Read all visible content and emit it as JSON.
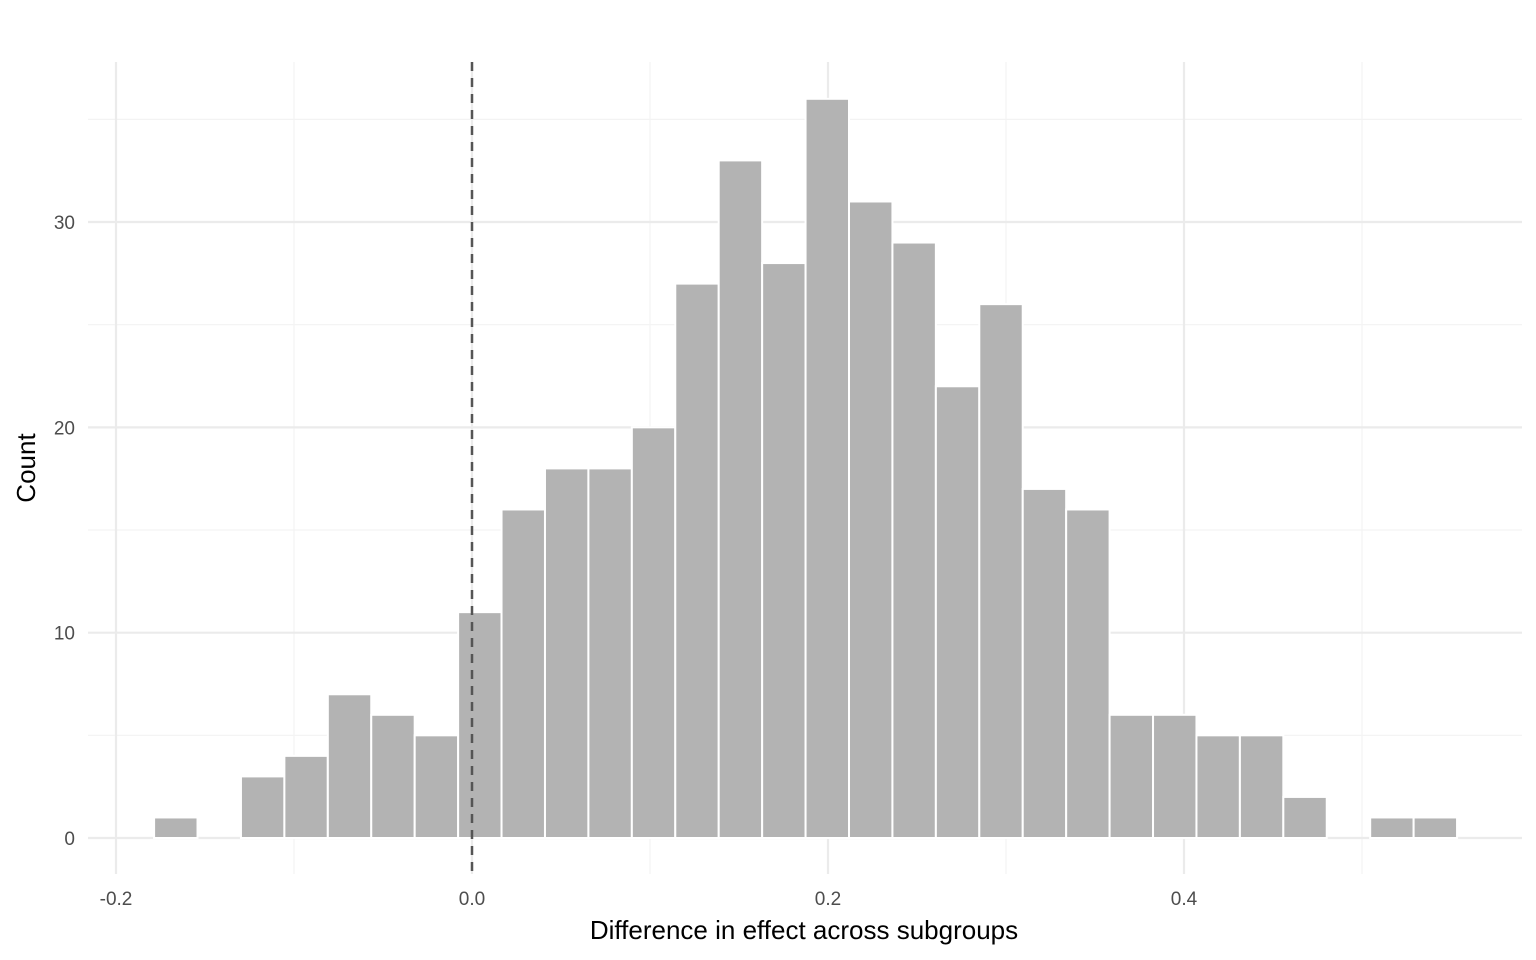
{
  "chart_data": {
    "type": "bar",
    "subtype": "histogram",
    "xlabel": "Difference in effect across subgroups",
    "ylabel": "Count",
    "xlim": [
      -0.2,
      0.57
    ],
    "ylim": [
      0,
      36
    ],
    "x_ticks": [
      {
        "value": -0.2,
        "label": "-0.2"
      },
      {
        "value": 0.0,
        "label": "0.0"
      },
      {
        "value": 0.2,
        "label": "0.2"
      },
      {
        "value": 0.4,
        "label": "0.4"
      }
    ],
    "x_minor_ticks": [
      -0.1,
      0.1,
      0.3,
      0.5
    ],
    "y_ticks": [
      {
        "value": 0,
        "label": "0"
      },
      {
        "value": 10,
        "label": "10"
      },
      {
        "value": 20,
        "label": "20"
      },
      {
        "value": 30,
        "label": "30"
      }
    ],
    "y_minor_ticks": [
      5,
      15,
      25,
      35
    ],
    "bin_width": 0.0244,
    "bins": [
      {
        "start": -0.1786,
        "count": 1
      },
      {
        "start": -0.1542,
        "count": 0
      },
      {
        "start": -0.1298,
        "count": 3
      },
      {
        "start": -0.1054,
        "count": 4
      },
      {
        "start": -0.081,
        "count": 7
      },
      {
        "start": -0.0566,
        "count": 6
      },
      {
        "start": -0.0322,
        "count": 5
      },
      {
        "start": -0.0078,
        "count": 11
      },
      {
        "start": 0.0166,
        "count": 16
      },
      {
        "start": 0.041,
        "count": 18
      },
      {
        "start": 0.0654,
        "count": 18
      },
      {
        "start": 0.0898,
        "count": 20
      },
      {
        "start": 0.1142,
        "count": 27
      },
      {
        "start": 0.1386,
        "count": 33
      },
      {
        "start": 0.163,
        "count": 28
      },
      {
        "start": 0.1874,
        "count": 36
      },
      {
        "start": 0.2118,
        "count": 31
      },
      {
        "start": 0.2362,
        "count": 29
      },
      {
        "start": 0.2606,
        "count": 22
      },
      {
        "start": 0.285,
        "count": 26
      },
      {
        "start": 0.3094,
        "count": 17
      },
      {
        "start": 0.3338,
        "count": 16
      },
      {
        "start": 0.3582,
        "count": 6
      },
      {
        "start": 0.3826,
        "count": 6
      },
      {
        "start": 0.407,
        "count": 5
      },
      {
        "start": 0.4314,
        "count": 5
      },
      {
        "start": 0.4558,
        "count": 2
      },
      {
        "start": 0.4802,
        "count": 0
      },
      {
        "start": 0.5046,
        "count": 1
      },
      {
        "start": 0.529,
        "count": 1
      }
    ],
    "reference_line": {
      "x": 0.0,
      "style": "dashed",
      "color": "#555555"
    },
    "bar_color": "#b3b3b3",
    "grid": true,
    "legend": "none"
  }
}
